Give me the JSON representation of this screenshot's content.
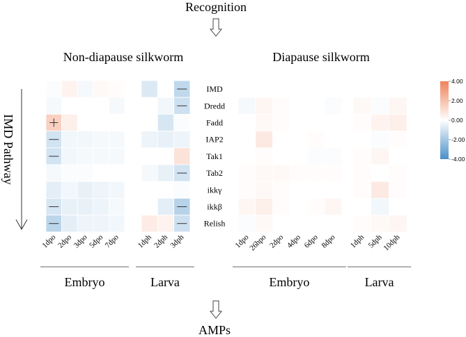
{
  "top_label": "Recognition",
  "bottom_label": "AMPs",
  "pathway_label": "IMD Pathway",
  "chart_data": {
    "type": "heatmap",
    "genes": [
      "IMD",
      "Dredd",
      "Fadd",
      "IAP2",
      "Tak1",
      "Tab2",
      "ikkγ",
      "ikkβ",
      "Relish"
    ],
    "color_scale": {
      "min": -4.0,
      "max": 4.0,
      "low_color": "#4a90c9",
      "mid_color": "#ffffff",
      "high_color": "#f0825a",
      "tick_labels": [
        "4.00",
        "2.00",
        "0.00",
        "-2.00",
        "-4.00"
      ]
    },
    "panels": [
      {
        "name": "Non-diapause silkworm",
        "groups": [
          {
            "name": "Embryo",
            "samples": [
              "1dpo",
              "2dpo",
              "3dpo",
              "5dpo",
              "7dpo"
            ],
            "values": [
              [
                -0.1,
                0.4,
                -0.2,
                0.2,
                0.1
              ],
              [
                -0.2,
                0.0,
                0.0,
                0.0,
                -0.2
              ],
              [
                1.5,
                0.5,
                0.0,
                0.0,
                0.0
              ],
              [
                -1.0,
                -0.3,
                -0.3,
                -0.2,
                -0.2
              ],
              [
                -1.0,
                -0.3,
                -0.2,
                -0.2,
                -0.2
              ],
              [
                -0.2,
                -0.1,
                -0.1,
                0.0,
                0.0
              ],
              [
                -0.6,
                -0.3,
                -0.5,
                -0.4,
                -0.3
              ],
              [
                -0.9,
                -0.5,
                -0.5,
                -0.4,
                -0.2
              ],
              [
                -1.5,
                -0.6,
                -0.4,
                -0.4,
                -0.3
              ]
            ],
            "marks": [
              [
                "",
                "",
                "",
                "",
                ""
              ],
              [
                "",
                "",
                "",
                "",
                ""
              ],
              [
                "+",
                "",
                "",
                "",
                ""
              ],
              [
                "—",
                "",
                "",
                "",
                ""
              ],
              [
                "—",
                "",
                "",
                "",
                ""
              ],
              [
                "",
                "",
                "",
                "",
                ""
              ],
              [
                "",
                "",
                "",
                "",
                ""
              ],
              [
                "—",
                "",
                "",
                "",
                ""
              ],
              [
                "—",
                "",
                "",
                "",
                ""
              ]
            ]
          },
          {
            "name": "Larva",
            "samples": [
              "1dph",
              "2dph",
              "3dph"
            ],
            "values": [
              [
                -0.8,
                0.0,
                -1.4
              ],
              [
                0.0,
                -0.3,
                -1.1
              ],
              [
                0.0,
                -0.9,
                -0.1
              ],
              [
                -0.4,
                -0.5,
                -0.4
              ],
              [
                0.0,
                0.0,
                0.9
              ],
              [
                -0.2,
                -0.5,
                -1.0
              ],
              [
                0.0,
                0.0,
                -0.1
              ],
              [
                0.0,
                -0.6,
                -1.6
              ],
              [
                0.6,
                0.4,
                -1.1
              ]
            ],
            "marks": [
              [
                "",
                "",
                "—"
              ],
              [
                "",
                "",
                "—"
              ],
              [
                "",
                "",
                ""
              ],
              [
                "",
                "",
                ""
              ],
              [
                "",
                "",
                ""
              ],
              [
                "",
                "",
                "—"
              ],
              [
                "",
                "",
                ""
              ],
              [
                "",
                "",
                "—"
              ],
              [
                "",
                "",
                "—"
              ]
            ]
          }
        ]
      },
      {
        "name": "Diapause silkworm",
        "groups": [
          {
            "name": "Embryo",
            "samples": [
              "1dpo",
              "26hpo",
              "2dpo",
              "4dpo",
              "6dpo",
              "8dpo"
            ],
            "values": [
              [
                0.0,
                0.0,
                0.0,
                0.0,
                0.0,
                0.0
              ],
              [
                -0.2,
                0.3,
                0.1,
                0.0,
                0.0,
                -0.1
              ],
              [
                0.0,
                0.2,
                0.1,
                0.0,
                0.0,
                0.0
              ],
              [
                0.0,
                0.7,
                0.0,
                0.0,
                0.1,
                0.0
              ],
              [
                0.0,
                0.1,
                0.0,
                0.0,
                -0.1,
                -0.1
              ],
              [
                0.1,
                0.2,
                0.2,
                0.1,
                0.1,
                0.1
              ],
              [
                0.1,
                0.2,
                0.1,
                0.0,
                0.0,
                0.0
              ],
              [
                0.3,
                0.5,
                0.1,
                0.0,
                0.1,
                0.3
              ],
              [
                -0.1,
                0.2,
                0.0,
                0.0,
                0.0,
                0.0
              ]
            ]
          },
          {
            "name": "Larva",
            "samples": [
              "1dph",
              "5dph",
              "10dph"
            ],
            "values": [
              [
                0.0,
                0.0,
                0.0
              ],
              [
                0.2,
                -0.1,
                0.3
              ],
              [
                0.1,
                0.4,
                0.5
              ],
              [
                0.0,
                -0.1,
                0.1
              ],
              [
                0.1,
                0.3,
                0.0
              ],
              [
                0.1,
                0.0,
                0.1
              ],
              [
                0.1,
                0.7,
                0.1
              ],
              [
                0.0,
                -0.3,
                0.0
              ],
              [
                0.1,
                0.2,
                0.3
              ]
            ]
          }
        ]
      }
    ]
  }
}
